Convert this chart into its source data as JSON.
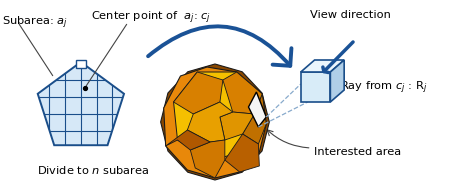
{
  "bg_color": "#ffffff",
  "pentagon_fill": "#d6e8f7",
  "pentagon_edge": "#1a4e8a",
  "grid_color": "#1a4e8a",
  "arrow_color": "#1a5296",
  "text_color": "#000000",
  "annot_line_color": "#444444",
  "cube_front_color": "#d8ecf8",
  "cube_top_color": "#eaf5fc",
  "cube_right_color": "#b0cfe8",
  "cube_edge_color": "#1a4e8a",
  "cube_dashed_color": "#88aacc",
  "dodge_yellow": "#f5c000",
  "dodge_orange": "#e8880a",
  "dodge_dark_orange": "#c06000",
  "dodge_brown": "#8a4800",
  "dodge_edge": "#1a1a1a",
  "interest_white": "#f5f5f5",
  "figsize": [
    4.5,
    1.89
  ],
  "dpi": 100
}
